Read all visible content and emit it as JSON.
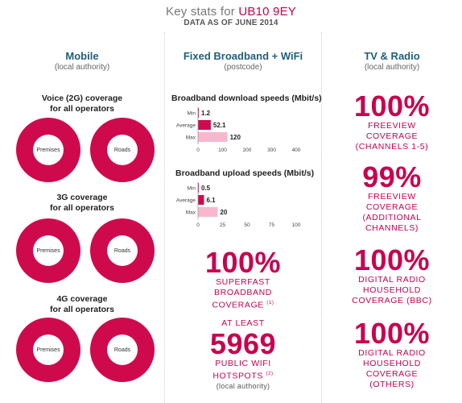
{
  "header": {
    "title_prefix": "Key stats for",
    "postcode": "UB10 9EY",
    "subtitle": "DATA AS OF JUNE 2014"
  },
  "colors": {
    "accent": "#cf0a4c",
    "accent_light": "#f7b8cd",
    "heading": "#1f5f7a"
  },
  "mobile": {
    "heading": "Mobile",
    "subheading": "(local authority)",
    "sections": [
      {
        "title_line1": "Voice (2G) coverage",
        "title_line2": "for all operators",
        "premises_label": "Premises",
        "roads_label": "Roads"
      },
      {
        "title_line1": "3G coverage",
        "title_line2": "for all operators",
        "premises_label": "Premises",
        "roads_label": "Roads"
      },
      {
        "title_line1": "4G coverage",
        "title_line2": "for all operators",
        "premises_label": "Premises",
        "roads_label": "Roads"
      }
    ]
  },
  "broadband": {
    "heading": "Fixed Broadband + WiFi",
    "subheading": "(postcode)",
    "superfast": {
      "value": "100%",
      "line1": "SUPERFAST",
      "line2": "BROADBAND",
      "line3": "COVERAGE",
      "note": "(1)"
    },
    "wifi": {
      "line1": "AT LEAST",
      "value": "5969",
      "line2": "PUBLIC WIFI",
      "line3": "HOTSPOTS",
      "note": "(2)",
      "scope": "(local authority)"
    }
  },
  "tv": {
    "heading": "TV & Radio",
    "subheading": "(local authority)",
    "stats": [
      {
        "value": "100%",
        "line1": "FREEVIEW",
        "line2": "COVERAGE",
        "line3": "(CHANNELS 1-5)"
      },
      {
        "value": "99%",
        "line1": "FREEVIEW",
        "line2": "COVERAGE",
        "line3": "(ADDITIONAL",
        "line4": "CHANNELS)"
      },
      {
        "value": "100%",
        "line1": "DIGITAL RADIO",
        "line2": "HOUSEHOLD",
        "line3": "COVERAGE (BBC)"
      },
      {
        "value": "100%",
        "line1": "DIGITAL RADIO",
        "line2": "HOUSEHOLD",
        "line3": "COVERAGE",
        "line4": "(OTHERS)"
      }
    ]
  },
  "chart_data": [
    {
      "type": "bar",
      "orientation": "horizontal",
      "title": "Broadband download speeds (Mbit/s)",
      "categories": [
        "Min",
        "Average",
        "Max"
      ],
      "values": [
        1.2,
        52.1,
        120
      ],
      "value_labels": [
        "1.2",
        "52.1",
        "120"
      ],
      "xlim": [
        0,
        400
      ],
      "ticks": [
        0,
        100,
        200,
        300,
        400
      ],
      "tick_labels": [
        "0",
        "100",
        "200",
        "300",
        "400"
      ],
      "grid": false
    },
    {
      "type": "bar",
      "orientation": "horizontal",
      "title": "Broadband upload speeds (Mbit/s)",
      "categories": [
        "Min",
        "Average",
        "Max"
      ],
      "values": [
        0.5,
        6.1,
        20
      ],
      "value_labels": [
        "0.5",
        "6.1",
        "20"
      ],
      "xlim": [
        0,
        100
      ],
      "ticks": [
        0,
        25,
        50,
        75,
        100
      ],
      "tick_labels": [
        "0",
        "25",
        "50",
        "75",
        "100"
      ],
      "grid": false
    }
  ]
}
